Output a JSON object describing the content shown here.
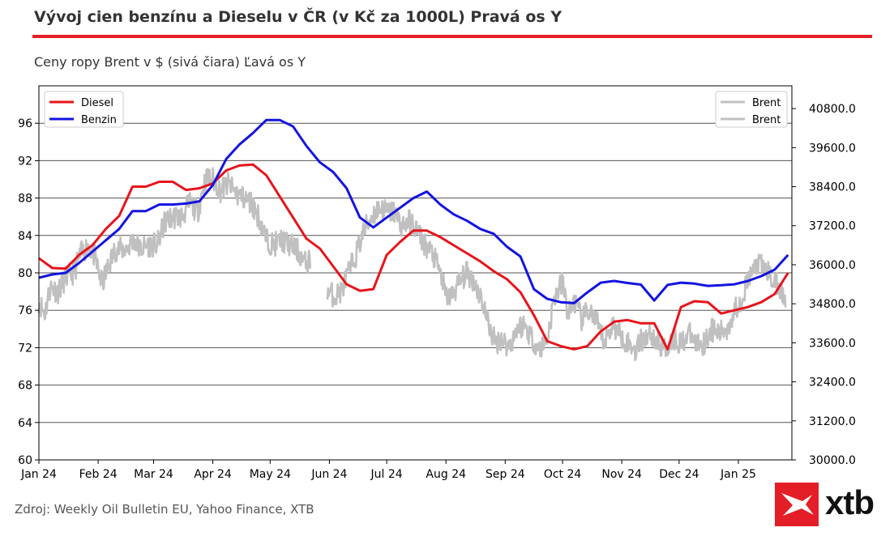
{
  "header": {
    "title": "Vývoj cien benzínu a Dieselu v ČR (v Kč za 1000L) Pravá os Y",
    "subtitle": "Ceny ropy Brent v $ (sivá čiara) Ľavá os Y"
  },
  "footer": {
    "source": "Zdroj: Weekly Oil Bulletin EU, Yahoo Finance, XTB",
    "logo_text": "xtb"
  },
  "colors": {
    "diesel": "#e8141b",
    "benzin": "#1414e0",
    "brent": "#c0c0c0",
    "accent": "#e41e26"
  },
  "chart_data": {
    "type": "line",
    "title": "",
    "x_tick_labels": [
      "Jan 24",
      "Feb 24",
      "Mar 24",
      "Apr 24",
      "May 24",
      "Jun 24",
      "Jul 24",
      "Aug 24",
      "Sep 24",
      "Oct 24",
      "Nov 24",
      "Dec 24",
      "Jan 25"
    ],
    "left_axis": {
      "ticks": [
        60,
        64,
        68,
        72,
        76,
        80,
        84,
        88,
        92,
        96
      ],
      "ylim": [
        60,
        100
      ]
    },
    "right_axis": {
      "ticks": [
        "30000.0",
        "31200.0",
        "32400.0",
        "33600.0",
        "34800.0",
        "36000.0",
        "37200.0",
        "38400.0",
        "39600.0",
        "40800.0"
      ],
      "ylim": [
        30000,
        41500
      ]
    },
    "grid": "horizontal",
    "legend_left": {
      "position": "top-left",
      "entries": [
        "Diesel",
        "Benzin"
      ]
    },
    "legend_right": {
      "position": "top-right",
      "entries": [
        "Brent",
        "Brent"
      ]
    },
    "series": [
      {
        "name": "Diesel",
        "axis": "right",
        "x": [
          "2024-01-01",
          "2024-01-08",
          "2024-01-15",
          "2024-01-22",
          "2024-01-29",
          "2024-02-05",
          "2024-02-12",
          "2024-02-19",
          "2024-02-26",
          "2024-03-04",
          "2024-03-11",
          "2024-03-18",
          "2024-03-25",
          "2024-04-01",
          "2024-04-08",
          "2024-04-15",
          "2024-04-22",
          "2024-04-29",
          "2024-05-06",
          "2024-05-13",
          "2024-05-20",
          "2024-05-27",
          "2024-06-03",
          "2024-06-10",
          "2024-06-17",
          "2024-06-24",
          "2024-07-01",
          "2024-07-08",
          "2024-07-15",
          "2024-07-22",
          "2024-07-29",
          "2024-08-05",
          "2024-08-12",
          "2024-08-19",
          "2024-08-26",
          "2024-09-02",
          "2024-09-09",
          "2024-09-16",
          "2024-09-23",
          "2024-09-30",
          "2024-10-07",
          "2024-10-14",
          "2024-10-21",
          "2024-10-28",
          "2024-11-04",
          "2024-11-11",
          "2024-11-18",
          "2024-11-25",
          "2024-12-02",
          "2024-12-09",
          "2024-12-16",
          "2024-12-23",
          "2024-12-30",
          "2025-01-06",
          "2025-01-13",
          "2025-01-20",
          "2025-01-27"
        ],
        "values": [
          36200,
          35900,
          35880,
          36300,
          36600,
          37100,
          37500,
          38400,
          38400,
          38550,
          38550,
          38300,
          38350,
          38500,
          38900,
          39050,
          39080,
          38750,
          38100,
          37450,
          36800,
          36500,
          35950,
          35400,
          35200,
          35250,
          36300,
          36700,
          37050,
          37050,
          36850,
          36600,
          36350,
          36100,
          35800,
          35550,
          35150,
          34450,
          33650,
          33500,
          33400,
          33500,
          33950,
          34250,
          34300,
          34200,
          34200,
          33400,
          34700,
          34880,
          34850,
          34500,
          34600,
          34700,
          34850,
          35100,
          35750
        ]
      },
      {
        "name": "Benzin",
        "axis": "right",
        "x": [
          "2024-01-01",
          "2024-01-08",
          "2024-01-15",
          "2024-01-22",
          "2024-01-29",
          "2024-02-05",
          "2024-02-12",
          "2024-02-19",
          "2024-02-26",
          "2024-03-04",
          "2024-03-11",
          "2024-03-18",
          "2024-03-25",
          "2024-04-01",
          "2024-04-08",
          "2024-04-15",
          "2024-04-22",
          "2024-04-29",
          "2024-05-06",
          "2024-05-13",
          "2024-05-20",
          "2024-05-27",
          "2024-06-03",
          "2024-06-10",
          "2024-06-17",
          "2024-06-24",
          "2024-07-01",
          "2024-07-08",
          "2024-07-15",
          "2024-07-22",
          "2024-07-29",
          "2024-08-05",
          "2024-08-12",
          "2024-08-19",
          "2024-08-26",
          "2024-09-02",
          "2024-09-09",
          "2024-09-16",
          "2024-09-23",
          "2024-09-30",
          "2024-10-07",
          "2024-10-14",
          "2024-10-21",
          "2024-10-28",
          "2024-11-04",
          "2024-11-11",
          "2024-11-18",
          "2024-11-25",
          "2024-12-02",
          "2024-12-09",
          "2024-12-16",
          "2024-12-23",
          "2024-12-30",
          "2025-01-06",
          "2025-01-13",
          "2025-01-20",
          "2025-01-27"
        ],
        "values": [
          35600,
          35700,
          35750,
          36050,
          36400,
          36750,
          37100,
          37650,
          37650,
          37850,
          37850,
          37880,
          37950,
          38450,
          39250,
          39700,
          40050,
          40450,
          40450,
          40250,
          39650,
          39150,
          38850,
          38350,
          37450,
          37150,
          37450,
          37750,
          38050,
          38250,
          37850,
          37550,
          37350,
          37100,
          36950,
          36550,
          36250,
          35250,
          34950,
          34850,
          34820,
          35150,
          35450,
          35500,
          35440,
          35390,
          34900,
          35380,
          35450,
          35420,
          35350,
          35370,
          35400,
          35500,
          35650,
          35850,
          36300
        ]
      },
      {
        "name": "Brent",
        "axis": "left",
        "x_range": [
          "2024-01-01",
          "2025-01-31"
        ],
        "anchors": [
          [
            0,
            77
          ],
          [
            3,
            75.6
          ],
          [
            6,
            78.5
          ],
          [
            10,
            78
          ],
          [
            14,
            79.5
          ],
          [
            18,
            80
          ],
          [
            22,
            82
          ],
          [
            26,
            83
          ],
          [
            29,
            81.8
          ],
          [
            33,
            78.8
          ],
          [
            37,
            81
          ],
          [
            40,
            82.5
          ],
          [
            45,
            82.5
          ],
          [
            50,
            83.5
          ],
          [
            53,
            82.5
          ],
          [
            57,
            83
          ],
          [
            62,
            83
          ],
          [
            66,
            85.5
          ],
          [
            71,
            86
          ],
          [
            75,
            86
          ],
          [
            79,
            87.5
          ],
          [
            83,
            86.5
          ],
          [
            87,
            90
          ],
          [
            91,
            90
          ],
          [
            95,
            88.8
          ],
          [
            99,
            89.5
          ],
          [
            103,
            88.5
          ],
          [
            107,
            88
          ],
          [
            111,
            87.5
          ],
          [
            115,
            86
          ],
          [
            119,
            83.5
          ],
          [
            123,
            83
          ],
          [
            127,
            83.5
          ],
          [
            131,
            83
          ],
          [
            135,
            82.5
          ],
          [
            139,
            81
          ],
          [
            143,
            81.5
          ],
          [
            147,
            79
          ],
          [
            151,
            78
          ],
          [
            155,
            77.5
          ],
          [
            158,
            78
          ],
          [
            162,
            80
          ],
          [
            166,
            82
          ],
          [
            170,
            84.5
          ],
          [
            174,
            86
          ],
          [
            178,
            87
          ],
          [
            182,
            86.5
          ],
          [
            186,
            86.5
          ],
          [
            190,
            85
          ],
          [
            194,
            85.5
          ],
          [
            198,
            84.5
          ],
          [
            202,
            83
          ],
          [
            206,
            82
          ],
          [
            210,
            80
          ],
          [
            213,
            77.5
          ],
          [
            216,
            77.5
          ],
          [
            220,
            79
          ],
          [
            224,
            80
          ],
          [
            228,
            79
          ],
          [
            232,
            77
          ],
          [
            236,
            74
          ],
          [
            239,
            72.5
          ],
          [
            242,
            73
          ],
          [
            246,
            72
          ],
          [
            250,
            74
          ],
          [
            254,
            74.5
          ],
          [
            258,
            73
          ],
          [
            262,
            71.8
          ],
          [
            266,
            73
          ],
          [
            270,
            77.5
          ],
          [
            274,
            79
          ],
          [
            277,
            75.5
          ],
          [
            280,
            77
          ],
          [
            284,
            75
          ],
          [
            288,
            76
          ],
          [
            292,
            74.5
          ],
          [
            296,
            72.5
          ],
          [
            300,
            74.5
          ],
          [
            304,
            73.5
          ],
          [
            308,
            72.5
          ],
          [
            312,
            71.8
          ],
          [
            316,
            73
          ],
          [
            320,
            73.5
          ],
          [
            324,
            72.5
          ],
          [
            328,
            71.8
          ],
          [
            332,
            73
          ],
          [
            336,
            72.5
          ],
          [
            340,
            73.5
          ],
          [
            344,
            72.5
          ],
          [
            348,
            72.5
          ],
          [
            352,
            74
          ],
          [
            356,
            73.5
          ],
          [
            360,
            74
          ],
          [
            364,
            76
          ],
          [
            367,
            77
          ],
          [
            370,
            78.5
          ],
          [
            373,
            80
          ],
          [
            376,
            81
          ],
          [
            379,
            80.5
          ],
          [
            382,
            80
          ],
          [
            385,
            79
          ],
          [
            388,
            78
          ],
          [
            391,
            77
          ]
        ],
        "ylim": [
          60,
          100
        ]
      }
    ]
  }
}
